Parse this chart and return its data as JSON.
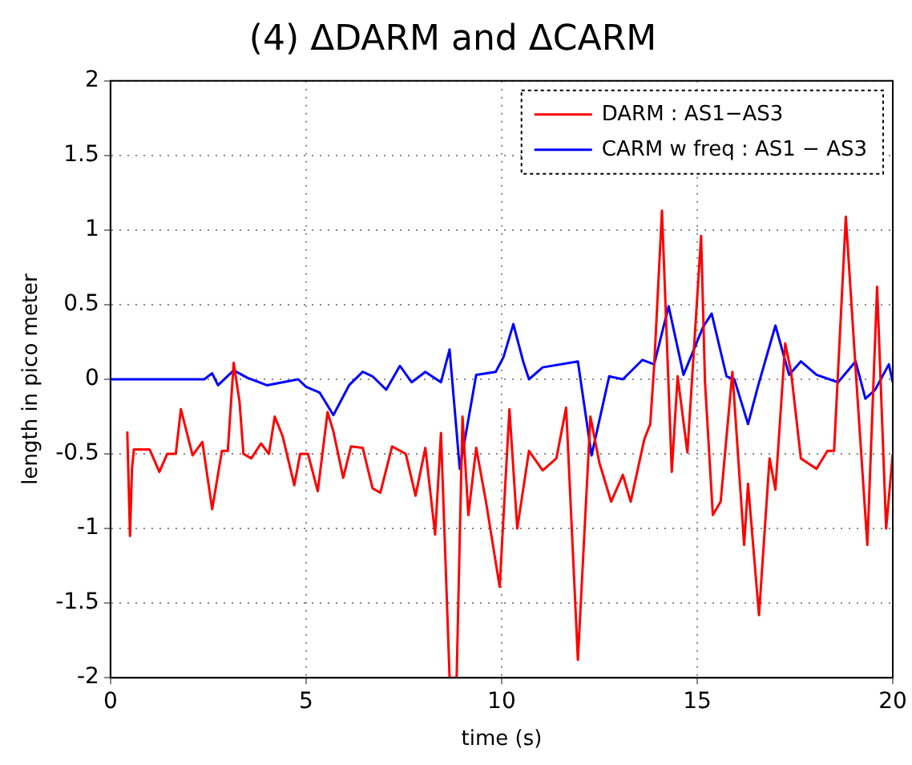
{
  "chart_data": {
    "type": "line",
    "title": "(4) ΔDARM and ΔCARM",
    "xlabel": "time (s)",
    "ylabel": "length in pico meter",
    "xlim": [
      0,
      20
    ],
    "xticks": [
      0,
      5,
      10,
      15,
      20
    ],
    "ylim": [
      -2,
      2
    ],
    "yticks": [
      -2,
      -1.5,
      -1,
      -0.5,
      0,
      0.5,
      1,
      1.5,
      2
    ],
    "grid": true,
    "legend": "top right",
    "marker": "none",
    "line_style": "solid",
    "series": [
      {
        "name": "DARM : AS1−AS3",
        "color": "#ff0000",
        "x": [
          0.43,
          0.5,
          0.55,
          0.6,
          1.0,
          1.25,
          1.45,
          1.67,
          1.8,
          2.1,
          2.35,
          2.6,
          2.85,
          3.0,
          3.15,
          3.3,
          3.4,
          3.6,
          3.85,
          4.05,
          4.2,
          4.4,
          4.7,
          4.85,
          5.05,
          5.3,
          5.55,
          5.7,
          5.95,
          6.15,
          6.45,
          6.7,
          6.9,
          7.2,
          7.55,
          7.8,
          8.05,
          8.3,
          8.45,
          8.67,
          8.85,
          9.0,
          9.15,
          9.35,
          9.6,
          9.95,
          10.2,
          10.4,
          10.7,
          11.05,
          11.4,
          11.65,
          11.95,
          12.27,
          12.5,
          12.8,
          13.1,
          13.3,
          13.65,
          13.8,
          13.9,
          14.1,
          14.35,
          14.5,
          14.75,
          15.1,
          15.2,
          15.4,
          15.6,
          15.9,
          16.2,
          16.3,
          16.58,
          16.85,
          17.0,
          17.25,
          17.4,
          17.65,
          18.05,
          18.33,
          18.5,
          18.8,
          19.1,
          19.35,
          19.6,
          19.83,
          20
        ],
        "values": [
          -0.35,
          -1.05,
          -0.6,
          -0.47,
          -0.47,
          -0.62,
          -0.5,
          -0.5,
          -0.2,
          -0.51,
          -0.42,
          -0.87,
          -0.48,
          -0.48,
          0.11,
          -0.15,
          -0.5,
          -0.53,
          -0.43,
          -0.5,
          -0.25,
          -0.38,
          -0.71,
          -0.5,
          -0.5,
          -0.75,
          -0.22,
          -0.35,
          -0.66,
          -0.45,
          -0.46,
          -0.73,
          -0.76,
          -0.45,
          -0.5,
          -0.78,
          -0.46,
          -1.04,
          -0.36,
          -2,
          -2,
          -0.25,
          -0.91,
          -0.46,
          -0.82,
          -1.39,
          -0.2,
          -1.0,
          -0.48,
          -0.61,
          -0.53,
          -0.19,
          -1.88,
          -0.25,
          -0.56,
          -0.82,
          -0.64,
          -0.82,
          -0.4,
          -0.3,
          0.09,
          1.13,
          -0.62,
          0.02,
          -0.49,
          0.96,
          -0.02,
          -0.91,
          -0.82,
          0.05,
          -1.11,
          -0.7,
          -1.58,
          -0.53,
          -0.74,
          0.24,
          0.05,
          -0.53,
          -0.6,
          -0.48,
          -0.48,
          1.09,
          -0.13,
          -1.11,
          0.62,
          -1.0,
          -0.5
        ]
      },
      {
        "name": "CARM w freq : AS1 − AS3",
        "color": "#0000ff",
        "x": [
          0,
          2.4,
          2.6,
          2.75,
          3.15,
          3.5,
          4.0,
          4.8,
          5.0,
          5.35,
          5.7,
          6.1,
          6.45,
          6.7,
          7.05,
          7.4,
          7.7,
          8.05,
          8.45,
          8.67,
          8.93,
          9.35,
          9.85,
          10.05,
          10.3,
          10.55,
          10.7,
          11.05,
          11.95,
          12.3,
          12.75,
          13.1,
          13.6,
          13.9,
          14.27,
          14.65,
          15.15,
          15.37,
          15.75,
          15.95,
          16.3,
          16.55,
          17.0,
          17.35,
          17.65,
          18.05,
          18.6,
          19.05,
          19.3,
          19.55,
          19.9,
          20
        ],
        "values": [
          0,
          0,
          0.04,
          -0.04,
          0.06,
          0.01,
          -0.04,
          0,
          -0.05,
          -0.09,
          -0.24,
          -0.04,
          0.05,
          0.02,
          -0.07,
          0.09,
          -0.02,
          0.05,
          -0.02,
          0.2,
          -0.6,
          0.03,
          0.05,
          0.15,
          0.37,
          0.12,
          0,
          0.08,
          0.12,
          -0.51,
          0.02,
          0,
          0.13,
          0.1,
          0.49,
          0.03,
          0.35,
          0.44,
          0.02,
          0,
          -0.3,
          -0.05,
          0.36,
          0.03,
          0.12,
          0.03,
          -0.02,
          0.12,
          -0.13,
          -0.07,
          0.1,
          -0.02
        ]
      }
    ]
  }
}
